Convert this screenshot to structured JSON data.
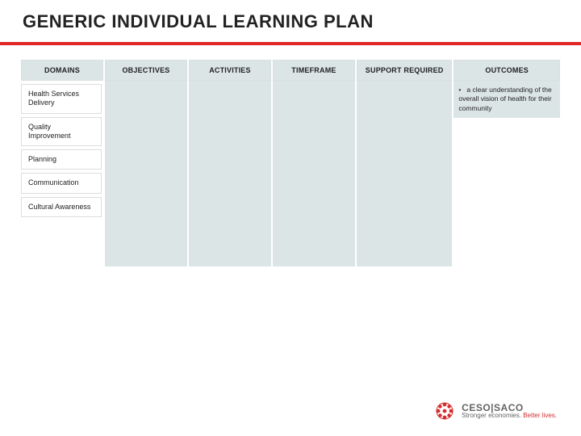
{
  "colors": {
    "title_bg": "#ffffff",
    "title_border": "#e12727",
    "title_text": "#222222",
    "header_bg": "#dce5e6",
    "header_text": "#222222",
    "column_bg": "#dce5e6",
    "brand_gray": "#636363",
    "brand_red": "#d62c2c"
  },
  "title": "GENERIC INDIVIDUAL LEARNING PLAN",
  "table": {
    "headers": [
      "DOMAINS",
      "OBJECTIVES",
      "ACTIVITIES",
      "TIMEFRAME",
      "SUPPORT REQUIRED",
      "OUTCOMES"
    ],
    "col_widths_pct": [
      15.5,
      15.5,
      15.5,
      15.5,
      18,
      20
    ],
    "domains": [
      "Health Services Delivery",
      "Quality Improvement",
      "Planning",
      "Communication",
      "Cultural Awareness"
    ],
    "outcomes": [
      "a clear understanding of the overall vision of health for their community"
    ]
  },
  "footer": {
    "brand": "CESO|SACO",
    "tagline_a": "Stronger economies. ",
    "tagline_b": "Better lives.",
    "logo_color": "#d62c2c"
  }
}
